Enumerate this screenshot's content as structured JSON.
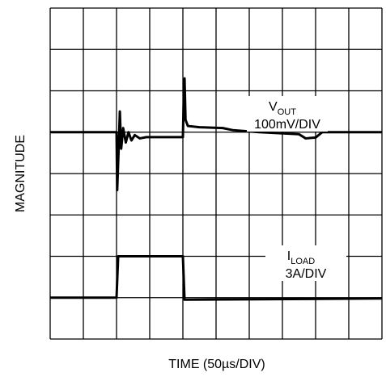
{
  "chart_data": {
    "type": "line",
    "xlabel": "TIME (50µs/DIV)",
    "ylabel": "MAGNITUDE",
    "xlim": [
      0,
      10
    ],
    "ylim": [
      0,
      8
    ],
    "xticks": [
      0,
      1,
      2,
      3,
      4,
      5,
      6,
      7,
      8,
      9,
      10
    ],
    "yticks": [
      0,
      1,
      2,
      3,
      4,
      5,
      6,
      7,
      8
    ],
    "grid": true,
    "series": [
      {
        "color": "#000000",
        "x": [
          0,
          2,
          2.02,
          2.06,
          2.1,
          2.14,
          2.2,
          2.28,
          2.36,
          2.45,
          2.55,
          2.7,
          2.9,
          4.0,
          4.02,
          4.05,
          4.08,
          4.15,
          4.5,
          5.2,
          5.5,
          6.3,
          7.5,
          7.7,
          8.0,
          8.2,
          10
        ],
        "values": [
          5,
          5,
          3.6,
          4.5,
          5.5,
          4.6,
          5.1,
          4.75,
          5.0,
          4.8,
          4.93,
          4.85,
          4.88,
          4.88,
          5.6,
          6.3,
          5.3,
          5.15,
          5.12,
          5.1,
          5.05,
          5.0,
          4.95,
          4.85,
          4.87,
          5.0,
          5
        ]
      },
      {
        "color": "#000000",
        "x": [
          0,
          2,
          2.05,
          4,
          4.05,
          10
        ],
        "values": [
          1,
          1,
          2,
          2,
          0.95,
          0.98
        ]
      }
    ],
    "annotations": [
      {
        "text": "V",
        "sub": "OUT",
        "scale": "100mV/DIV"
      },
      {
        "text": "I",
        "sub": "LOAD",
        "scale": "3A/DIV"
      }
    ]
  }
}
